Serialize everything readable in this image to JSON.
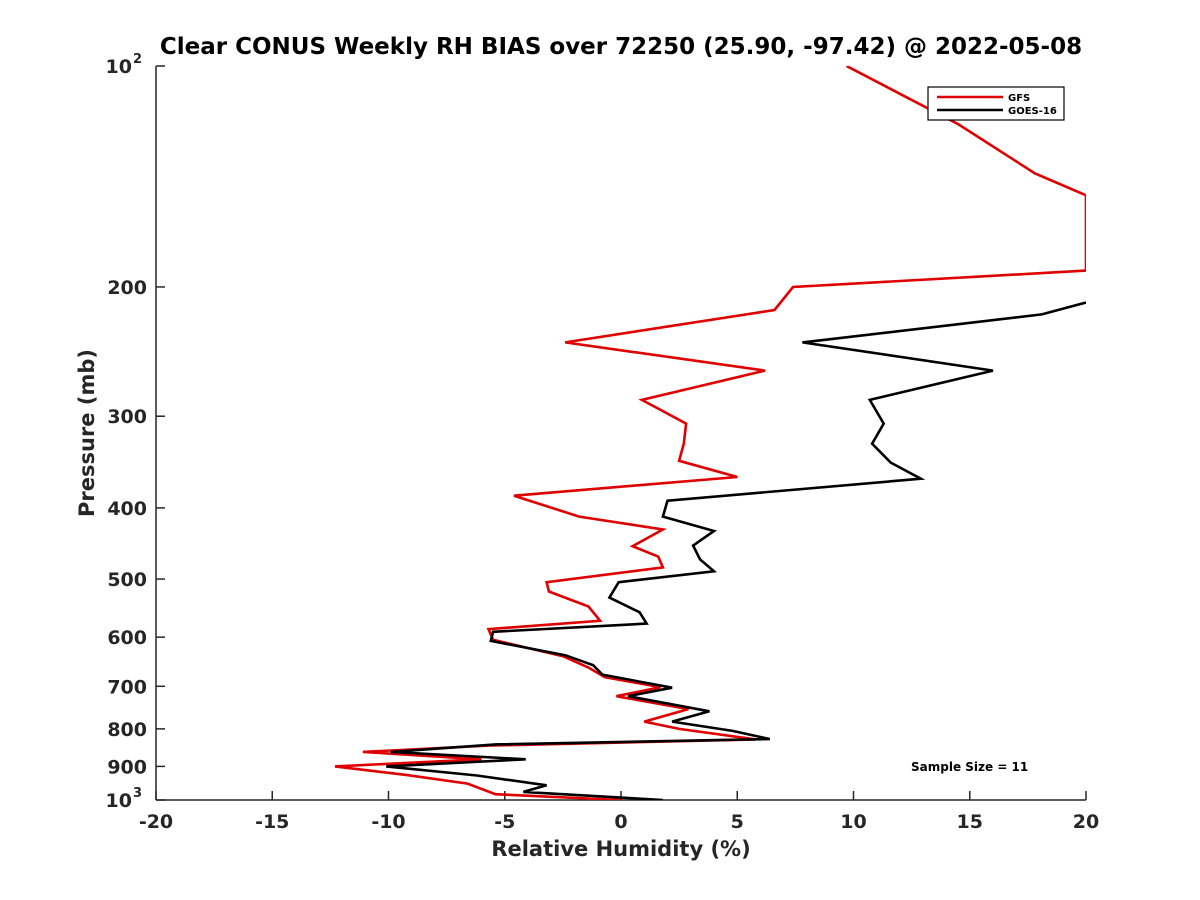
{
  "chart_data": {
    "type": "line",
    "title": "Clear CONUS Weekly RH BIAS over 72250 (25.90, -97.42) @ 2022-05-08",
    "xlabel": "Relative Humidity (%)",
    "ylabel": "Pressure (mb)",
    "xlim": [
      -20,
      20
    ],
    "ylim": [
      100,
      1000
    ],
    "y_scale": "log",
    "y_reversed": true,
    "x_ticks": [
      {
        "value": -20,
        "label": "-20"
      },
      {
        "value": -15,
        "label": "-15"
      },
      {
        "value": -10,
        "label": "-10"
      },
      {
        "value": -5,
        "label": "-5"
      },
      {
        "value": 0,
        "label": "0"
      },
      {
        "value": 5,
        "label": "5"
      },
      {
        "value": 10,
        "label": "10"
      },
      {
        "value": 15,
        "label": "15"
      },
      {
        "value": 20,
        "label": "20"
      }
    ],
    "y_ticks": [
      {
        "value": 100,
        "label": "10",
        "sup": "2"
      },
      {
        "value": 200,
        "label": "200"
      },
      {
        "value": 300,
        "label": "300"
      },
      {
        "value": 400,
        "label": "400"
      },
      {
        "value": 500,
        "label": "500"
      },
      {
        "value": 600,
        "label": "600"
      },
      {
        "value": 700,
        "label": "700"
      },
      {
        "value": 800,
        "label": "800"
      },
      {
        "value": 900,
        "label": "900"
      },
      {
        "value": 1000,
        "label": "10",
        "sup": "3"
      }
    ],
    "grid": false,
    "legend_position": "top-right",
    "annotation": "Sample Size = 11",
    "series": [
      {
        "name": "GFS",
        "color": "#e00000",
        "points": [
          {
            "x": 9.7,
            "p": 100
          },
          {
            "x": 14.5,
            "p": 120
          },
          {
            "x": 17.8,
            "p": 140
          },
          {
            "x": 20.0,
            "p": 150
          },
          {
            "x": 20.0,
            "p": 190
          },
          {
            "x": 7.4,
            "p": 200
          },
          {
            "x": 6.6,
            "p": 215
          },
          {
            "x": -2.4,
            "p": 238
          },
          {
            "x": 6.2,
            "p": 260
          },
          {
            "x": 0.9,
            "p": 285
          },
          {
            "x": 2.8,
            "p": 307
          },
          {
            "x": 2.7,
            "p": 327
          },
          {
            "x": 2.5,
            "p": 345
          },
          {
            "x": 5.0,
            "p": 363
          },
          {
            "x": -4.6,
            "p": 385
          },
          {
            "x": -1.8,
            "p": 411
          },
          {
            "x": 1.8,
            "p": 428
          },
          {
            "x": 0.5,
            "p": 451
          },
          {
            "x": 1.6,
            "p": 466
          },
          {
            "x": 1.8,
            "p": 482
          },
          {
            "x": -3.2,
            "p": 505
          },
          {
            "x": -3.1,
            "p": 520
          },
          {
            "x": -1.4,
            "p": 545
          },
          {
            "x": -0.9,
            "p": 570
          },
          {
            "x": -5.7,
            "p": 585
          },
          {
            "x": -5.5,
            "p": 605
          },
          {
            "x": -2.5,
            "p": 637
          },
          {
            "x": -1.4,
            "p": 660
          },
          {
            "x": -0.7,
            "p": 680
          },
          {
            "x": 1.7,
            "p": 702
          },
          {
            "x": -0.2,
            "p": 722
          },
          {
            "x": 2.9,
            "p": 752
          },
          {
            "x": 1.0,
            "p": 782
          },
          {
            "x": 2.5,
            "p": 800
          },
          {
            "x": 5.8,
            "p": 827
          },
          {
            "x": -5.7,
            "p": 843
          },
          {
            "x": -11.1,
            "p": 860
          },
          {
            "x": -6.0,
            "p": 880
          },
          {
            "x": -12.3,
            "p": 900
          },
          {
            "x": -9.2,
            "p": 925
          },
          {
            "x": -6.6,
            "p": 950
          },
          {
            "x": -5.4,
            "p": 982
          },
          {
            "x": 0.0,
            "p": 1000
          }
        ]
      },
      {
        "name": "GOES-16",
        "color": "#000000",
        "points": [
          {
            "x": 20.0,
            "p": 210
          },
          {
            "x": 18.1,
            "p": 218
          },
          {
            "x": 7.8,
            "p": 238
          },
          {
            "x": 16.0,
            "p": 260
          },
          {
            "x": 10.7,
            "p": 285
          },
          {
            "x": 11.3,
            "p": 307
          },
          {
            "x": 10.8,
            "p": 327
          },
          {
            "x": 11.6,
            "p": 347
          },
          {
            "x": 12.9,
            "p": 365
          },
          {
            "x": 2.0,
            "p": 391
          },
          {
            "x": 1.8,
            "p": 411
          },
          {
            "x": 4.0,
            "p": 430
          },
          {
            "x": 3.1,
            "p": 450
          },
          {
            "x": 3.4,
            "p": 470
          },
          {
            "x": 4.0,
            "p": 488
          },
          {
            "x": -0.1,
            "p": 505
          },
          {
            "x": -0.5,
            "p": 530
          },
          {
            "x": 0.8,
            "p": 555
          },
          {
            "x": 1.1,
            "p": 575
          },
          {
            "x": -5.5,
            "p": 590
          },
          {
            "x": -5.6,
            "p": 607
          },
          {
            "x": -2.4,
            "p": 635
          },
          {
            "x": -1.2,
            "p": 655
          },
          {
            "x": -0.8,
            "p": 675
          },
          {
            "x": 2.2,
            "p": 703
          },
          {
            "x": 0.3,
            "p": 722
          },
          {
            "x": 3.8,
            "p": 757
          },
          {
            "x": 2.2,
            "p": 782
          },
          {
            "x": 4.8,
            "p": 805
          },
          {
            "x": 6.4,
            "p": 826
          },
          {
            "x": -5.4,
            "p": 840
          },
          {
            "x": -9.9,
            "p": 860
          },
          {
            "x": -4.1,
            "p": 880
          },
          {
            "x": -10.1,
            "p": 900
          },
          {
            "x": -6.2,
            "p": 926
          },
          {
            "x": -3.2,
            "p": 955
          },
          {
            "x": -4.2,
            "p": 975
          },
          {
            "x": 1.8,
            "p": 1000
          }
        ]
      }
    ]
  }
}
